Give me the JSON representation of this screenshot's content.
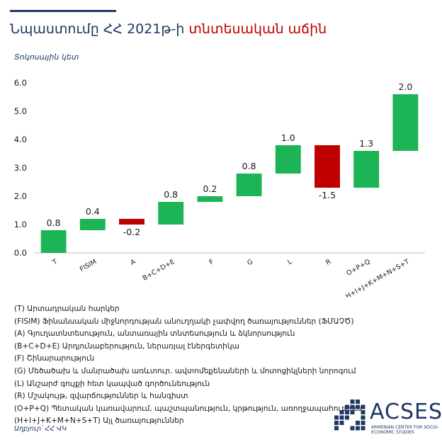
{
  "header": {
    "title_part1": "Նպաստումը ՀՀ 2021թ-ի",
    "title_part2": "տնտեսական աճին",
    "y_unit": "Տոկոսային կետ"
  },
  "colors": {
    "positive": "#1cb454",
    "negative": "#c00000",
    "navy": "#1f3864",
    "axis": "#bfbfbf"
  },
  "chart_data": {
    "type": "bar",
    "subtype": "waterfall",
    "title": "",
    "xlabel": "",
    "ylabel": "Տոկոսային կետ",
    "ylim": [
      0,
      6
    ],
    "yticks": [
      "0.0",
      "1.0",
      "2.0",
      "3.0",
      "4.0",
      "5.0",
      "6.0"
    ],
    "grid": false,
    "categories": [
      "T",
      "FISIM",
      "A",
      "B+C+D+E",
      "F",
      "G",
      "L",
      "R",
      "O+P+Q",
      "H+I+J+K+M+N+S+T"
    ],
    "values": [
      0.8,
      0.4,
      -0.2,
      0.8,
      0.2,
      0.8,
      1.0,
      -1.5,
      1.3,
      2.0
    ],
    "value_labels": [
      "0.8",
      "0.4",
      "-0.2",
      "0.8",
      "0.2",
      "0.8",
      "1.0",
      "-1.5",
      "1.3",
      "2.0"
    ]
  },
  "legend": [
    "(T) Արտադրական  հարկեր",
    "(FISIM) Ֆինանսական միջնորդության անուղղակի չափվող ծառայություններ (ՖՄԱՉԾ)",
    "(A) Գյուղատնտեսություն, անտառային տնտեսություն և ձկնորսություն",
    "(B+C+D+E)  Արդյունաբերություն, ներառյալ էներգետիկա",
    "(F) Շինարարություն",
    "(G) Մեծածախ և մանրածախ առևտուր. ավտոմեքենաների և մոտոցիկլների նորոգում",
    "(L) Անշարժ գույքի հետ կապված գործունեություն",
    "(R) Մշակույթ, զվարճություններ և հանգիստ",
    "(O+P+Q)  Պետական կառավարում, պաշտպանություն, կրթություն, առողջապահություն",
    "(H+I+J+K+M+N+S+T)  Այլ ծառայություններ"
  ],
  "source": "Աղբյուր՝ ՀՀ ՎԿ",
  "logo": {
    "name": "ACSES",
    "subtitle": "ARMENIAN CENTER FOR SOCIO-ECONOMIC STUDIES",
    "icon": "acses-logo-icon"
  }
}
